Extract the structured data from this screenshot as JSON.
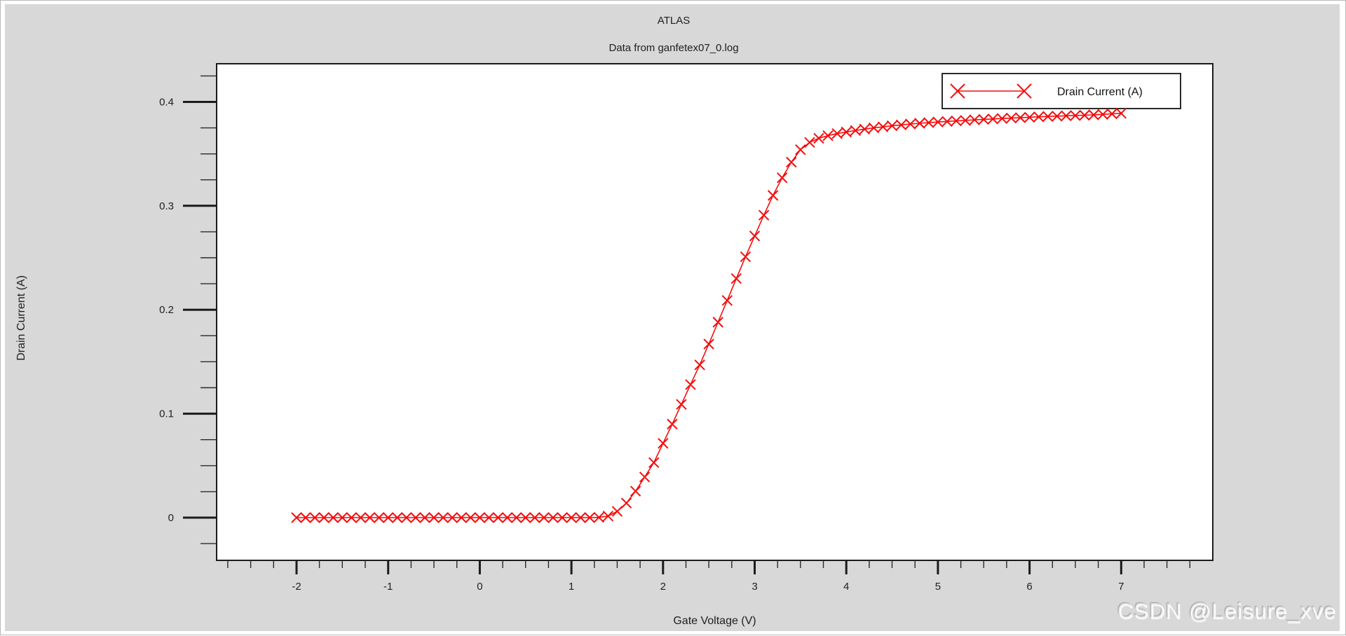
{
  "window": {
    "background_color": "#d8d8d8",
    "plot_background_color": "#ffffff",
    "frame_color": "#1b1b1b"
  },
  "watermark": {
    "text": "CSDN @Leisure_xve"
  },
  "chart_data": {
    "type": "line",
    "title": "ATLAS",
    "subtitle": "Data from ganfetex07_0.log",
    "xlabel": "Gate Voltage (V)",
    "ylabel": "Drain Current (A)",
    "grid": false,
    "legend_position": "top-right",
    "xlim": [
      -2.872,
      8.0
    ],
    "ylim": [
      -0.0411,
      0.4367
    ],
    "x_major_ticks": [
      -2,
      -1,
      0,
      1,
      2,
      3,
      4,
      5,
      6,
      7
    ],
    "x_tick_labels": [
      "-2",
      "-1",
      "0",
      "1",
      "2",
      "3",
      "4",
      "5",
      "6",
      "7"
    ],
    "x_minor": {
      "start": -2.75,
      "end": 7.75,
      "step": 0.25
    },
    "y_major_ticks": [
      0,
      0.1,
      0.2,
      0.3,
      0.4
    ],
    "y_tick_labels": [
      "0",
      "0.1",
      "0.2",
      "0.3",
      "0.4"
    ],
    "y_minor": {
      "start": -0.025,
      "end": 0.425,
      "step": 0.025
    },
    "series": [
      {
        "name": "Drain Current (A)",
        "color": "#f50d0d",
        "marker": "x",
        "x": [
          -2.0,
          -1.9,
          -1.8,
          -1.7,
          -1.6,
          -1.5,
          -1.4,
          -1.3,
          -1.2,
          -1.1,
          -1.0,
          -0.9,
          -0.8,
          -0.7,
          -0.6,
          -0.5,
          -0.4,
          -0.3,
          -0.2,
          -0.1,
          0.0,
          0.1,
          0.2,
          0.3,
          0.4,
          0.5,
          0.6,
          0.7,
          0.8,
          0.9,
          1.0,
          1.1,
          1.2,
          1.3,
          1.4,
          1.5,
          1.6,
          1.7,
          1.8,
          1.9,
          2.0,
          2.1,
          2.2,
          2.3,
          2.4,
          2.5,
          2.6,
          2.7,
          2.8,
          2.9,
          3.0,
          3.1,
          3.2,
          3.3,
          3.4,
          3.5,
          3.6,
          3.7,
          3.8,
          3.9,
          4.0,
          4.1,
          4.2,
          4.3,
          4.4,
          4.5,
          4.6,
          4.7,
          4.8,
          4.9,
          5.0,
          5.1,
          5.2,
          5.3,
          5.4,
          5.5,
          5.6,
          5.7,
          5.8,
          5.9,
          6.0,
          6.1,
          6.2,
          6.3,
          6.4,
          6.5,
          6.6,
          6.7,
          6.8,
          6.9,
          7.0
        ],
        "y": [
          0,
          0,
          0,
          0,
          0,
          0,
          0,
          0,
          0,
          0,
          0,
          0,
          0,
          0,
          0,
          0,
          0,
          0,
          0,
          0,
          0,
          0,
          0,
          0,
          0,
          0,
          0,
          0,
          0,
          0,
          0,
          0,
          0,
          0.0002,
          0.0015,
          0.006,
          0.014,
          0.0255,
          0.039,
          0.053,
          0.0715,
          0.09,
          0.109,
          0.128,
          0.147,
          0.167,
          0.188,
          0.209,
          0.23,
          0.251,
          0.271,
          0.291,
          0.31,
          0.327,
          0.342,
          0.354,
          0.361,
          0.365,
          0.3675,
          0.3695,
          0.371,
          0.3725,
          0.3738,
          0.375,
          0.376,
          0.377,
          0.3779,
          0.3787,
          0.3794,
          0.38,
          0.3806,
          0.3812,
          0.3817,
          0.3822,
          0.3827,
          0.3832,
          0.3836,
          0.384,
          0.3844,
          0.3848,
          0.3852,
          0.3856,
          0.386,
          0.3863,
          0.3866,
          0.3869,
          0.3872,
          0.3875,
          0.388,
          0.3885,
          0.389
        ]
      }
    ]
  }
}
